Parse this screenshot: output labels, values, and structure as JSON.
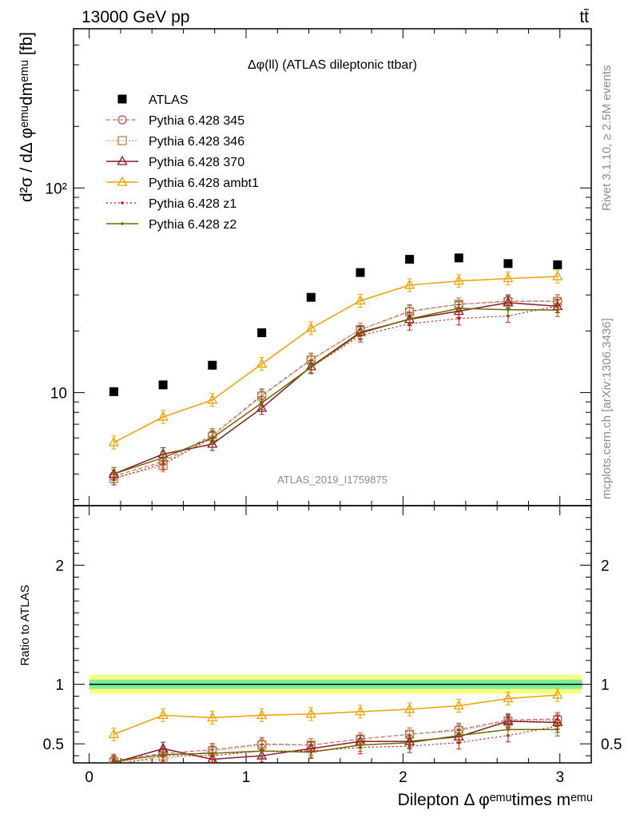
{
  "header": {
    "left": "13000 GeV pp",
    "right": "tt̄"
  },
  "side": {
    "rivet": "Rivet 3.1.10, ≥ 2.5M events",
    "mcplots": "mcplots.cern.ch [arXiv:1306.3436]"
  },
  "plot": {
    "title": "Δφ(ll) (ATLAS dileptonic ttbar)",
    "analysis": "ATLAS_2019_I1759875"
  },
  "axes": {
    "ylabel_main": "d²σ / dΔ φᵉᵐᵘdmᵉᵐᵘ [fb]",
    "ylabel_ratio": "Ratio to ATLAS",
    "xlabel": "Dilepton Δ φᵉᵐᵘtimes mᵉᵐᵘ"
  },
  "colors": {
    "ATLAS": "#000000",
    "p345": "#c0504d",
    "p346": "#b8864b",
    "p370": "#8b1a2b",
    "ambt1": "#f0a000",
    "z1": "#dd1111",
    "z2": "#6b6b00",
    "band_inner": "#7fef9f",
    "band_outer": "#ffff80"
  },
  "chart_data": [
    {
      "type": "scatter",
      "panel": "main",
      "yscale": "log",
      "xlim": [
        -0.1,
        3.2
      ],
      "ylim": [
        2.8,
        600
      ],
      "xticks": [
        "0",
        "1",
        "2",
        "3"
      ],
      "yticks": [
        "10",
        "10²"
      ],
      "x": [
        0.157,
        0.471,
        0.785,
        1.1,
        1.414,
        1.728,
        2.042,
        2.356,
        2.67,
        2.985
      ],
      "series": [
        {
          "name": "ATLAS",
          "key": "ATLAS",
          "values": [
            10.1,
            10.9,
            13.6,
            19.6,
            29.2,
            38.6,
            44.8,
            45.5,
            42.7,
            42.1
          ]
        },
        {
          "name": "Pythia 6.428 345",
          "key": "p345",
          "values": [
            3.9,
            4.6,
            6.2,
            9.7,
            14.5,
            20.3,
            25.0,
            27.0,
            28.0,
            28.0
          ]
        },
        {
          "name": "Pythia 6.428 346",
          "key": "p346",
          "values": [
            3.8,
            4.4,
            6.1,
            9.6,
            14.4,
            20.3,
            24.8,
            27.0,
            27.8,
            27.9
          ]
        },
        {
          "name": "Pythia 6.428 370",
          "key": "p370",
          "values": [
            4.0,
            5.0,
            5.6,
            8.4,
            13.4,
            19.7,
            22.8,
            25.0,
            27.5,
            26.4
          ]
        },
        {
          "name": "Pythia 6.428 ambt1",
          "key": "ambt1",
          "values": [
            5.7,
            7.6,
            9.2,
            13.8,
            20.6,
            28.1,
            33.5,
            35.1,
            36.1,
            36.9
          ]
        },
        {
          "name": "Pythia 6.428 z1",
          "key": "z1",
          "values": [
            3.8,
            4.5,
            6.0,
            8.9,
            13.3,
            19.0,
            21.7,
            23.0,
            23.7,
            26.5
          ]
        },
        {
          "name": "Pythia 6.428 z2",
          "key": "z2",
          "values": [
            4.0,
            4.8,
            6.0,
            8.9,
            13.3,
            19.5,
            22.9,
            25.8,
            25.4,
            25.3
          ]
        }
      ]
    },
    {
      "type": "line",
      "panel": "ratio",
      "xlim": [
        -0.1,
        3.2
      ],
      "ylim": [
        0.34,
        2.5
      ],
      "xticks": [
        "0",
        "1",
        "2",
        "3"
      ],
      "yticks": [
        "0.5",
        "1",
        "2"
      ],
      "x": [
        0.157,
        0.471,
        0.785,
        1.1,
        1.414,
        1.728,
        2.042,
        2.356,
        2.67,
        2.985
      ],
      "band_inner": [
        0.96,
        1.04
      ],
      "band_outer": [
        0.92,
        1.08
      ],
      "series": [
        {
          "name": "Pythia 6.428 345",
          "key": "p345",
          "values": [
            0.36,
            0.42,
            0.45,
            0.5,
            0.49,
            0.54,
            0.58,
            0.62,
            0.7,
            0.71
          ]
        },
        {
          "name": "Pythia 6.428 346",
          "key": "p346",
          "values": [
            0.35,
            0.37,
            0.44,
            0.49,
            0.49,
            0.54,
            0.58,
            0.61,
            0.69,
            0.7
          ]
        },
        {
          "name": "Pythia 6.428 370",
          "key": "p370",
          "values": [
            0.34,
            0.46,
            0.37,
            0.4,
            0.46,
            0.52,
            0.52,
            0.56,
            0.69,
            0.68
          ]
        },
        {
          "name": "Pythia 6.428 ambt1",
          "key": "ambt1",
          "values": [
            0.58,
            0.74,
            0.72,
            0.74,
            0.75,
            0.77,
            0.79,
            0.82,
            0.88,
            0.91
          ]
        },
        {
          "name": "Pythia 6.428 z1",
          "key": "z1",
          "values": [
            0.32,
            0.4,
            0.4,
            0.44,
            0.44,
            0.47,
            0.48,
            0.51,
            0.57,
            0.65
          ]
        },
        {
          "name": "Pythia 6.428 z2",
          "key": "z2",
          "values": [
            0.35,
            0.41,
            0.42,
            0.44,
            0.43,
            0.49,
            0.51,
            0.57,
            0.62,
            0.62
          ]
        }
      ]
    }
  ]
}
